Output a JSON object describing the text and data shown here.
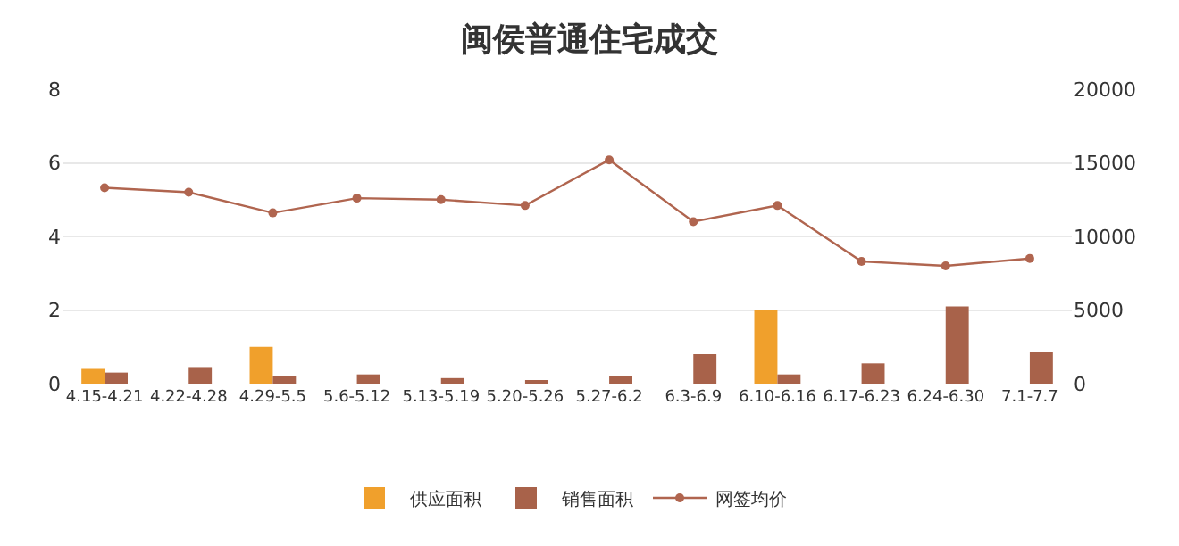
{
  "chart_data": {
    "type": "bar",
    "title": "闽侯普通住宅成交",
    "categories": [
      "4.15-4.21",
      "4.22-4.28",
      "4.29-5.5",
      "5.6-5.12",
      "5.13-5.19",
      "5.20-5.26",
      "5.27-6.2",
      "6.3-6.9",
      "6.10-6.16",
      "6.17-6.23",
      "6.24-6.30",
      "7.1-7.7"
    ],
    "series": [
      {
        "name": "供应面积",
        "color": "#f0a02c",
        "values": [
          0.4,
          null,
          1.0,
          null,
          null,
          null,
          null,
          null,
          2.0,
          null,
          null,
          null
        ]
      },
      {
        "name": "销售面积",
        "color": "#a8624a",
        "values": [
          0.3,
          0.45,
          0.2,
          0.25,
          0.15,
          0.08,
          0.2,
          0.8,
          0.25,
          0.55,
          2.1,
          0.85
        ]
      },
      {
        "name": "网签均价",
        "type": "line",
        "axis": "y2",
        "color": "#b0654f",
        "values": [
          13300,
          13000,
          11600,
          12600,
          12500,
          12100,
          15200,
          11000,
          12100,
          8300,
          8000,
          8500
        ]
      }
    ],
    "ylim": [
      0,
      8
    ],
    "yticks": [
      0,
      2,
      4,
      6,
      8
    ],
    "y2lim": [
      0,
      20000
    ],
    "y2ticks": [
      0,
      5000,
      10000,
      15000,
      20000
    ],
    "grid": "y",
    "legend": "bottom",
    "marker": "circle"
  }
}
